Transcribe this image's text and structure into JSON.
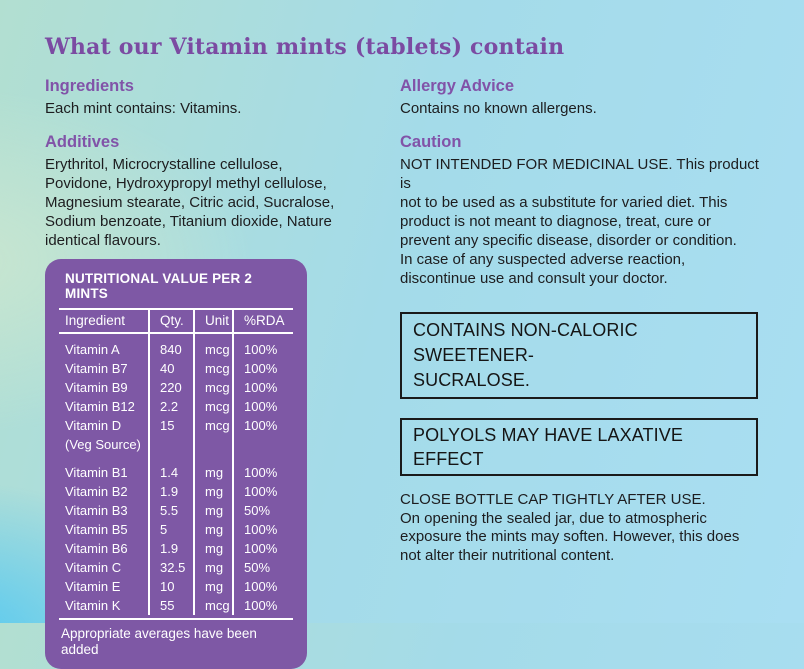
{
  "title": "What our Vitamin mints (tablets) contain",
  "colors": {
    "accent_purple": "#7b4ba2",
    "heading_purple": "#8153a8",
    "table_purple": "#7e58a5",
    "text_dark": "#1d1d1f"
  },
  "left": {
    "ingredients_heading": "Ingredients",
    "ingredients_text": "Each mint contains: Vitamins.",
    "additives_heading": "Additives",
    "additives_text": "Erythritol, Microcrystalline cellulose,\nPovidone, Hydroxypropyl methyl cellulose,\nMagnesium stearate, Citric acid, Sucralose,\nSodium benzoate, Titanium dioxide, Nature\nidentical flavours."
  },
  "table": {
    "title": "NUTRITIONAL VALUE PER 2 MINTS",
    "columns": [
      "Ingredient",
      "Qty.",
      "Unit",
      "%RDA"
    ],
    "rows": [
      {
        "name": "Vitamin A",
        "qty": "840",
        "unit": "mcg",
        "rda": "100%"
      },
      {
        "name": "Vitamin B7",
        "qty": "40",
        "unit": "mcg",
        "rda": "100%"
      },
      {
        "name": "Vitamin B9",
        "qty": "220",
        "unit": "mcg",
        "rda": "100%"
      },
      {
        "name": "Vitamin B12",
        "qty": "2.2",
        "unit": "mcg",
        "rda": "100%"
      },
      {
        "name": "Vitamin D",
        "name2": "(Veg Source)",
        "qty": "15",
        "unit": "mcg",
        "rda": "100%",
        "gap_after": true
      },
      {
        "name": "Vitamin B1",
        "qty": "1.4",
        "unit": "mg",
        "rda": "100%"
      },
      {
        "name": "Vitamin B2",
        "qty": "1.9",
        "unit": "mg",
        "rda": "100%"
      },
      {
        "name": "Vitamin B3",
        "qty": "5.5",
        "unit": "mg",
        "rda": "50%"
      },
      {
        "name": "Vitamin B5",
        "qty": "5",
        "unit": "mg",
        "rda": "100%"
      },
      {
        "name": "Vitamin B6",
        "qty": "1.9",
        "unit": "mg",
        "rda": "100%"
      },
      {
        "name": "Vitamin C",
        "qty": "32.5",
        "unit": "mg",
        "rda": "50%"
      },
      {
        "name": "Vitamin E",
        "qty": "10",
        "unit": "mg",
        "rda": "100%"
      },
      {
        "name": "Vitamin K",
        "qty": "55",
        "unit": "mcg",
        "rda": "100%"
      }
    ],
    "footer": "Appropriate averages have been added"
  },
  "right": {
    "allergy_heading": "Allergy Advice",
    "allergy_text": "Contains no known allergens.",
    "caution_heading": "Caution",
    "caution_text": "NOT INTENDED FOR MEDICINAL USE. This product is\nnot to be used as a substitute for varied diet. This\nproduct is not meant to diagnose, treat, cure or\nprevent any specific disease, disorder or condition.\nIn case of any suspected adverse reaction,\ndiscontinue use and consult your doctor.",
    "warning_box_1": "CONTAINS NON-CALORIC SWEETENER-\nSUCRALOSE.",
    "warning_box_2": "POLYOLS MAY HAVE LAXATIVE\nEFFECT",
    "storage_text": "CLOSE BOTTLE CAP TIGHTLY AFTER USE.\nOn opening the sealed jar, due to atmospheric\nexposure the mints may soften. However, this does\nnot alter their nutritional content."
  }
}
